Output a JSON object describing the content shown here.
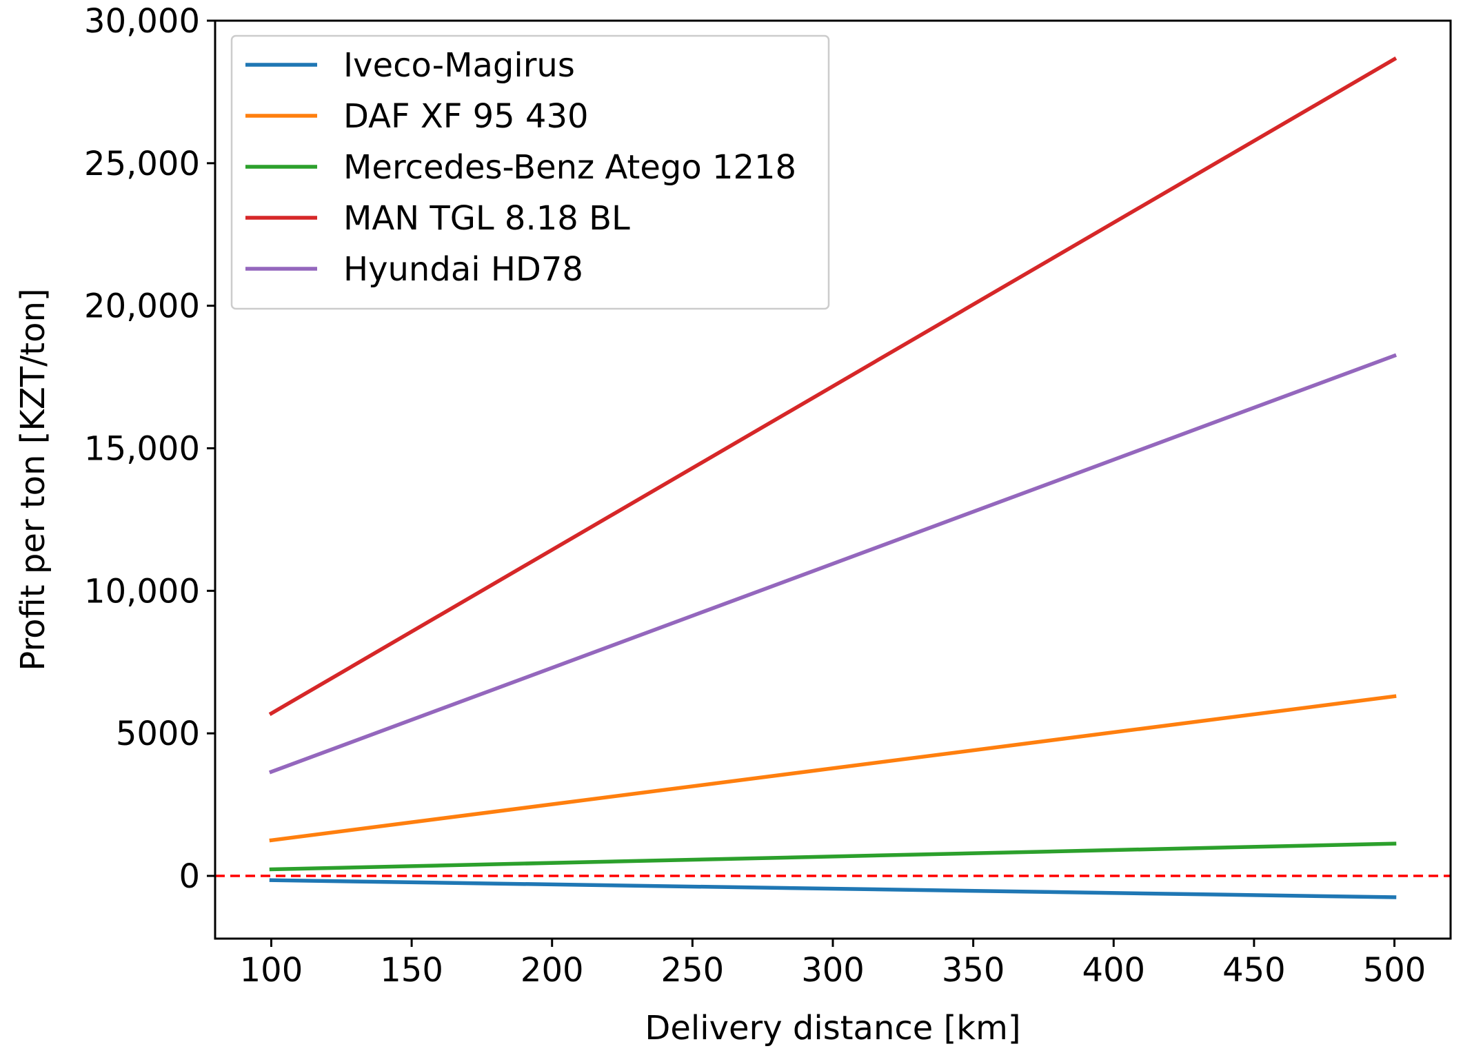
{
  "chart_data": {
    "type": "line",
    "title": "",
    "xlabel": "Delivery distance [km]",
    "ylabel": "Profit per ton [KZT/ton]",
    "xlim": [
      80,
      520
    ],
    "ylim": [
      -2200,
      30000
    ],
    "x_ticks": [
      100,
      150,
      200,
      250,
      300,
      350,
      400,
      450,
      500
    ],
    "x_tick_labels": [
      "100",
      "150",
      "200",
      "250",
      "300",
      "350",
      "400",
      "450",
      "500"
    ],
    "y_ticks": [
      0,
      5000,
      10000,
      15000,
      20000,
      25000,
      30000
    ],
    "y_tick_labels": [
      "0",
      "5000",
      "10,000",
      "15,000",
      "20,000",
      "25,000",
      "30,000"
    ],
    "grid": false,
    "legend_position": "top-left",
    "reference_line": {
      "y": 0,
      "color": "#ff0000",
      "style": "dashed"
    },
    "series": [
      {
        "name": "Iveco-Magirus",
        "color": "#1f77b4",
        "x": [
          100,
          500
        ],
        "values": [
          -150,
          -750
        ]
      },
      {
        "name": "DAF XF 95 430",
        "color": "#ff7f0e",
        "x": [
          100,
          500
        ],
        "values": [
          1250,
          6300
        ]
      },
      {
        "name": "Mercedes-Benz Atego 1218",
        "color": "#2ca02c",
        "x": [
          100,
          500
        ],
        "values": [
          230,
          1130
        ]
      },
      {
        "name": "MAN TGL 8.18 BL",
        "color": "#d62728",
        "x": [
          100,
          500
        ],
        "values": [
          5700,
          28650
        ]
      },
      {
        "name": "Hyundai HD78",
        "color": "#9467bd",
        "x": [
          100,
          500
        ],
        "values": [
          3650,
          18250
        ]
      }
    ]
  }
}
